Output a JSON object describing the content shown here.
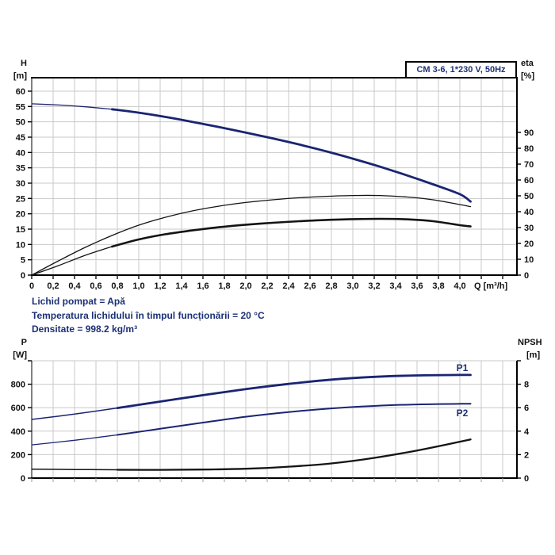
{
  "colors": {
    "curve_blue": "#1a2472",
    "curve_black": "#141414",
    "grid": "#c9c9c9",
    "axis": "#000000",
    "text_blue": "#1d3076",
    "text_black": "#111111"
  },
  "labels": {
    "h": "H",
    "h_unit": "[m]",
    "eta": "eta",
    "eta_unit": "[%]",
    "p": "P",
    "p_unit": "[W]",
    "npsh": "NPSH",
    "npsh_unit": "[m]"
  },
  "info_lines": {
    "line1": "Lichid pompat = Apă",
    "line2": "Temperatura lichidului în timpul funcționării = 20 °C",
    "line3": "Densitate = 998.2 kg/m³"
  },
  "chart_data": [
    {
      "type": "line",
      "title": "CM 3-6, 1*230 V, 50Hz",
      "xlabel": "Q [m³/h]",
      "ylabel_left": "H [m]",
      "ylabel_right": "eta [%]",
      "x_range": [
        0,
        4.5
      ],
      "x_tick_step": 0.2,
      "x_tick_labels": [
        "0",
        "0,2",
        "0,4",
        "0,6",
        "0,8",
        "1,0",
        "1,2",
        "1,4",
        "1,6",
        "1,8",
        "2,0",
        "2,2",
        "2,4",
        "2,6",
        "2,8",
        "3,0",
        "3,2",
        "3,4",
        "3,6",
        "3,8",
        "4,0"
      ],
      "left_range": [
        0,
        64
      ],
      "left_ticks": [
        0,
        5,
        10,
        15,
        20,
        25,
        30,
        35,
        40,
        45,
        50,
        55,
        60
      ],
      "right_range": [
        0,
        90
      ],
      "right_ticks": [
        0,
        10,
        20,
        30,
        40,
        50,
        60,
        70,
        80,
        90
      ],
      "grid": true,
      "series": [
        {
          "name": "H",
          "axis": "left",
          "color": "blue",
          "split_q": 0.75,
          "x": [
            0,
            0.25,
            0.5,
            0.75,
            1,
            1.25,
            1.5,
            1.75,
            2,
            2.25,
            2.5,
            2.75,
            3,
            3.25,
            3.5,
            3.75,
            4,
            4.1
          ],
          "y": [
            55.9,
            55.5,
            54.9,
            54.1,
            53.0,
            51.6,
            50.0,
            48.3,
            46.5,
            44.6,
            42.6,
            40.4,
            38.0,
            35.4,
            32.6,
            29.6,
            26.4,
            24.0
          ]
        },
        {
          "name": "eta-pump",
          "axis": "right",
          "color": "black",
          "x": [
            0,
            0.25,
            0.5,
            0.75,
            1,
            1.25,
            1.5,
            1.75,
            2,
            2.25,
            2.5,
            2.75,
            3,
            3.25,
            3.5,
            3.75,
            4,
            4.1
          ],
          "y": [
            0,
            9,
            17.5,
            25,
            31.5,
            36.5,
            40.5,
            43.5,
            45.8,
            47.5,
            48.8,
            49.7,
            50.2,
            50.2,
            49.3,
            47.5,
            44.5,
            43.2
          ]
        },
        {
          "name": "eta-pump-motor",
          "axis": "right",
          "color": "black",
          "split_q": 0.75,
          "x": [
            0,
            0.25,
            0.5,
            0.75,
            1,
            1.25,
            1.5,
            1.75,
            2,
            2.25,
            2.5,
            2.75,
            3,
            3.25,
            3.5,
            3.75,
            4,
            4.1
          ],
          "y": [
            0,
            6,
            12.5,
            18,
            22.5,
            25.8,
            28.2,
            30.2,
            31.8,
            33.0,
            34.0,
            34.8,
            35.3,
            35.5,
            35.2,
            34.0,
            31.5,
            30.7
          ]
        }
      ]
    },
    {
      "type": "line",
      "title": "",
      "xlabel": "",
      "ylabel_left": "P [W]",
      "ylabel_right": "NPSH [m]",
      "x_range": [
        0,
        4.5
      ],
      "x_tick_step": 0.2,
      "x_tick_labels": [],
      "left_range": [
        0,
        1000
      ],
      "left_ticks": [
        0,
        200,
        400,
        600,
        800,
        1000
      ],
      "left_tick_labels": [
        "0",
        "200",
        "400",
        "600",
        "800",
        ""
      ],
      "right_range": [
        0,
        10
      ],
      "right_ticks": [
        0,
        2,
        4,
        6,
        8,
        10
      ],
      "right_tick_labels": [
        "0",
        "2",
        "4",
        "6",
        "8",
        ""
      ],
      "grid": true,
      "series": [
        {
          "name": "P1",
          "label": "P1",
          "axis": "left",
          "color": "blue",
          "split_q": 0.75,
          "x": [
            0,
            0.4,
            0.8,
            1.2,
            1.6,
            2,
            2.4,
            2.8,
            3.2,
            3.6,
            4,
            4.1
          ],
          "y": [
            500,
            545,
            597,
            652,
            707,
            758,
            803,
            839,
            863,
            875,
            879,
            879
          ]
        },
        {
          "name": "P2",
          "label": "P2",
          "axis": "left",
          "color": "blue",
          "split_q": 0.75,
          "x": [
            0,
            0.4,
            0.8,
            1.2,
            1.6,
            2,
            2.4,
            2.8,
            3.2,
            3.6,
            4,
            4.1
          ],
          "y": [
            283,
            322,
            368,
            420,
            473,
            523,
            563,
            594,
            615,
            628,
            633,
            633
          ]
        },
        {
          "name": "NPSH",
          "axis": "right",
          "color": "black",
          "split_q": 0.75,
          "x": [
            0,
            0.4,
            0.8,
            1.2,
            1.6,
            2,
            2.4,
            2.8,
            3.2,
            3.6,
            4,
            4.1
          ],
          "y": [
            0.76,
            0.73,
            0.71,
            0.7,
            0.73,
            0.8,
            0.97,
            1.25,
            1.72,
            2.35,
            3.1,
            3.3
          ]
        }
      ]
    }
  ]
}
